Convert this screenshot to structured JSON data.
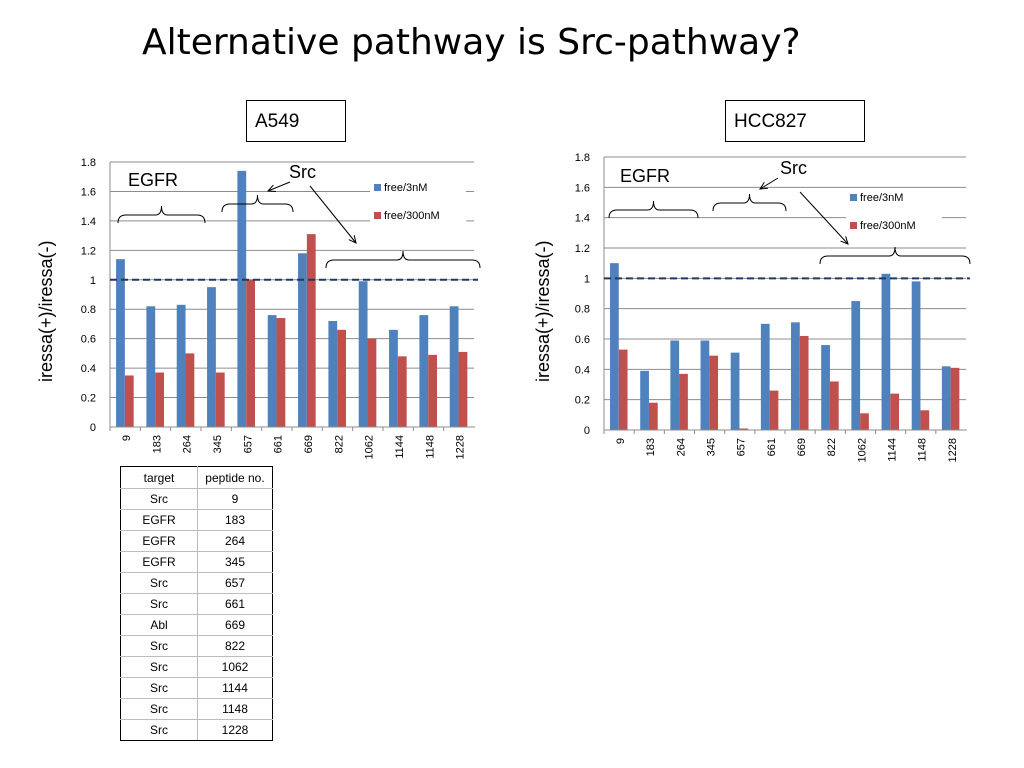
{
  "title": "Alternative pathway is Src-pathway?",
  "chart_data": [
    {
      "type": "bar",
      "title": "A549",
      "ylabel": "iressa(+)/iressa(-)",
      "ylim": [
        0,
        1.8
      ],
      "yticks": [
        "0",
        "0.2",
        "0.4",
        "0.6",
        "0.8",
        "1",
        "1.2",
        "1.4",
        "1.6",
        "1.8"
      ],
      "categories": [
        "9",
        "183",
        "264",
        "345",
        "657",
        "661",
        "669",
        "822",
        "1062",
        "1144",
        "1148",
        "1228"
      ],
      "series": [
        {
          "name": "free/3nM",
          "color": "#4f81bd",
          "values": [
            1.14,
            0.82,
            0.83,
            0.95,
            1.74,
            0.76,
            1.18,
            0.72,
            0.99,
            0.66,
            0.76,
            0.82
          ]
        },
        {
          "name": "free/300nM",
          "color": "#c0504d",
          "values": [
            0.35,
            0.37,
            0.5,
            0.37,
            1.0,
            0.74,
            1.31,
            0.66,
            0.6,
            0.48,
            0.49,
            0.51
          ]
        }
      ],
      "reference_line": 1,
      "grid": true,
      "legend_position": "right",
      "annotations": [
        "EGFR",
        "Src"
      ]
    },
    {
      "type": "bar",
      "title": "HCC827",
      "ylabel": "iressa(+)/iressa(-)",
      "ylim": [
        0,
        1.8
      ],
      "yticks": [
        "0",
        "0.2",
        "0.4",
        "0.6",
        "0.8",
        "1",
        "1.2",
        "1.4",
        "1.6",
        "1.8"
      ],
      "categories": [
        "9",
        "183",
        "264",
        "345",
        "657",
        "661",
        "669",
        "822",
        "1062",
        "1144",
        "1148",
        "1228"
      ],
      "series": [
        {
          "name": "free/3nM",
          "color": "#4f81bd",
          "values": [
            1.1,
            0.39,
            0.59,
            0.59,
            0.51,
            0.7,
            0.71,
            0.56,
            0.85,
            1.03,
            0.98,
            0.42
          ]
        },
        {
          "name": "free/300nM",
          "color": "#c0504d",
          "values": [
            0.53,
            0.18,
            0.37,
            0.49,
            0.01,
            0.26,
            0.62,
            0.32,
            0.11,
            0.24,
            0.13,
            0.41
          ]
        }
      ],
      "reference_line": 1,
      "grid": true,
      "legend_position": "right",
      "annotations": [
        "EGFR",
        "Src"
      ]
    }
  ],
  "table": {
    "headers": [
      "target",
      "peptide no."
    ],
    "rows": [
      [
        "Src",
        "9"
      ],
      [
        "EGFR",
        "183"
      ],
      [
        "EGFR",
        "264"
      ],
      [
        "EGFR",
        "345"
      ],
      [
        "Src",
        "657"
      ],
      [
        "Src",
        "661"
      ],
      [
        "Abl",
        "669"
      ],
      [
        "Src",
        "822"
      ],
      [
        "Src",
        "1062"
      ],
      [
        "Src",
        "1144"
      ],
      [
        "Src",
        "1148"
      ],
      [
        "Src",
        "1228"
      ]
    ]
  }
}
